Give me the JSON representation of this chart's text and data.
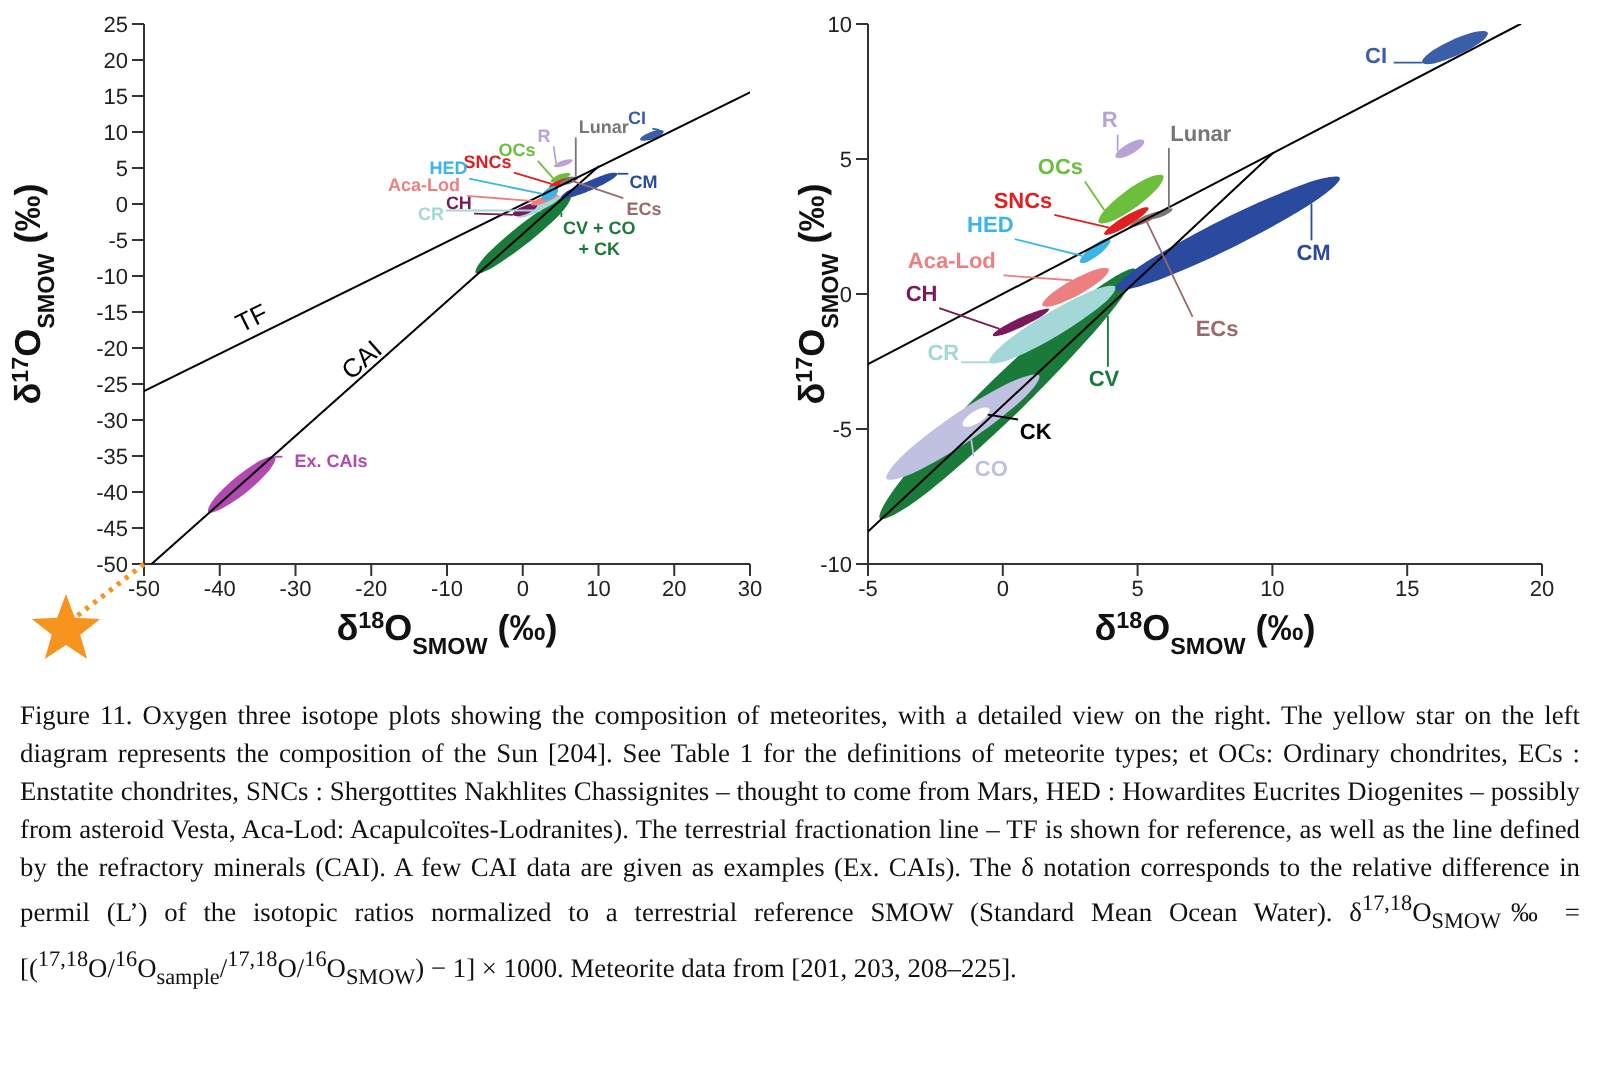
{
  "chart_data": [
    {
      "type": "area",
      "xlabel": "δ$^{18}$O$_{SMOW}$ (‰)",
      "ylabel": "δ$^{17}$O$_{SMOW}$ (‰)",
      "xlim": [
        -50,
        30
      ],
      "ylim": [
        -50,
        25
      ],
      "xticks": [
        -50,
        -40,
        -30,
        -20,
        -10,
        0,
        10,
        20,
        30
      ],
      "yticks": [
        -50,
        -45,
        -40,
        -35,
        -30,
        -25,
        -20,
        -15,
        -10,
        -5,
        0,
        5,
        10,
        15,
        20,
        25
      ],
      "series": [
        {
          "color": "#1a7a3a",
          "x": [
            6.3,
            3.9,
            -0.8,
            -5.0,
            -6.2,
            -3.8,
            0.9,
            5.1
          ],
          "values": [
            1.1,
            0.2,
            -3.3,
            -7.3,
            -9.6,
            -8.7,
            -5.2,
            -1.2
          ]
        },
        {
          "color": "#a4d8d8",
          "x": [
            5.0,
            4.0,
            1.9,
            -0.1,
            -0.7,
            0.3,
            2.4,
            4.4
          ],
          "values": [
            1.1,
            1.1,
            0.2,
            -1.0,
            -1.8,
            -1.8,
            -0.9,
            0.3
          ]
        },
        {
          "color": "#2a4aa0",
          "x": [
            12.5,
            11.2,
            8.5,
            5.9,
            5.0,
            6.3,
            9.0,
            11.6
          ],
          "values": [
            4.2,
            4.2,
            3.1,
            1.8,
            0.8,
            0.9,
            1.9,
            3.3
          ]
        },
        {
          "color": "#7a1a5a",
          "x": [
            1.9,
            1.3,
            0.1,
            -1.0,
            -1.3,
            -0.7,
            0.5,
            1.6
          ],
          "values": [
            -0.1,
            0.1,
            -0.3,
            -0.9,
            -1.5,
            -1.7,
            -1.4,
            -0.7
          ]
        },
        {
          "color": "#ec7f7f",
          "x": [
            4.6,
            4.0,
            2.7,
            1.5,
            1.1,
            1.7,
            3.0,
            4.2
          ],
          "values": [
            1.3,
            1.4,
            1.0,
            0.4,
            -0.1,
            -0.2,
            0.2,
            0.8
          ]
        },
        {
          "color": "#9a6a6a",
          "x": [
            6.8,
            6.3,
            5.3,
            4.4,
            4.1,
            4.6,
            5.6,
            6.5
          ],
          "values": [
            3.6,
            3.8,
            3.6,
            3.1,
            2.7,
            2.5,
            2.7,
            3.2
          ]
        },
        {
          "color": "#6cbf3c",
          "x": [
            6.3,
            5.8,
            4.8,
            4.0,
            3.7,
            4.2,
            5.2,
            6.0
          ],
          "values": [
            4.2,
            4.3,
            4.1,
            3.6,
            3.1,
            3.0,
            3.2,
            3.8
          ]
        },
        {
          "color": "#e02020",
          "x": [
            6.3,
            5.7,
            4.8,
            3.8,
            3.5,
            4.1,
            5.0,
            6.0
          ],
          "values": [
            3.5,
            3.6,
            3.3,
            2.8,
            2.3,
            2.2,
            2.5,
            3.0
          ]
        },
        {
          "color": "#3cb4e8",
          "x": [
            4.6,
            4.0,
            3.2,
            2.6,
            2.6,
            3.2,
            4.0,
            4.6
          ],
          "values": [
            2.3,
            2.5,
            2.1,
            1.4,
            0.7,
            0.5,
            0.9,
            1.6
          ]
        },
        {
          "color": "#777777",
          "x": [
            7.4,
            7.0,
            6.1,
            5.2,
            4.9,
            5.6,
            6.2,
            7.1
          ],
          "values": [
            3.7,
            3.8,
            3.7,
            3.2,
            2.8,
            2.7,
            2.8,
            3.3
          ]
        },
        {
          "color": "#b8a4d4",
          "x": [
            6.6,
            6.1,
            5.2,
            4.4,
            4.1,
            4.6,
            5.5,
            6.3
          ],
          "values": [
            6.1,
            6.2,
            6.0,
            5.6,
            5.2,
            5.1,
            5.3,
            5.7
          ]
        },
        {
          "color": "#3a5fa8",
          "x": [
            18.6,
            18.0,
            16.9,
            15.8,
            15.5,
            16.1,
            17.2,
            18.3
          ],
          "values": [
            10.1,
            10.3,
            10.0,
            9.4,
            8.9,
            8.8,
            9.0,
            9.6
          ]
        },
        {
          "color": "#b04ab0",
          "x": [
            -32.7,
            -34.6,
            -37.9,
            -40.8,
            -41.5,
            -39.7,
            -36.3,
            -33.4
          ],
          "values": [
            -35.1,
            -35.6,
            -38.0,
            -41.0,
            -42.8,
            -42.3,
            -39.9,
            -36.9
          ]
        },
        {
          "type": "line",
          "color": "#000000",
          "x": [
            -50,
            30
          ],
          "values": [
            -26,
            15.5
          ]
        },
        {
          "type": "line",
          "color": "#000000",
          "x": [
            -49,
            10
          ],
          "values": [
            -50,
            5.2
          ]
        }
      ],
      "annotations": [
        {
          "text": "CV + CO\n+ CK",
          "x": 5.1,
          "y": -1.2
        },
        {
          "text": "CR",
          "x": 2.4,
          "y": -0.9
        },
        {
          "text": "CM",
          "x": 12.5,
          "y": 4.2
        },
        {
          "text": "CH",
          "x": -1.3,
          "y": -1.5
        },
        {
          "text": "Aca-Lod",
          "x": 1.5,
          "y": 0.4
        },
        {
          "text": "ECs",
          "x": 6.5,
          "y": 3.2
        },
        {
          "text": "OCs",
          "x": 4.0,
          "y": 3.6
        },
        {
          "text": "SNCs",
          "x": 3.8,
          "y": 2.8
        },
        {
          "text": "HED",
          "x": 2.6,
          "y": 1.4
        },
        {
          "text": "Lunar",
          "x": 7.0,
          "y": 3.8
        },
        {
          "text": "R",
          "x": 4.4,
          "y": 5.6
        },
        {
          "text": "CI",
          "x": 18.0,
          "y": 10.3
        },
        {
          "text": "Ex. CAIs",
          "x": -32.7,
          "y": -35.1
        },
        {
          "text": "TF",
          "x": -35.8,
          "y": -18.6
        },
        {
          "text": "CAI",
          "x": -21.3,
          "y": -24.1
        },
        "Figure 11. Oxygen three isotope plots showing the composition of meteorites, with a detailed view on the right. The yellow star on the left diagram represents the composition of the Sun [204]. See Table 1 for the definitions of meteorite types; et OCs: Ordinary chondrites, ECs : Enstatite chondrites, SNCs : Shergottites Nakhlites Chassignites – thought to come from Mars, HED : Howardites Eucrites Diogenites – possibly from asteroid Vesta, Aca-Lod: Acapulcoïtes-Lodranites). The terrestrial fractionation line – TF is shown for reference, as well as the line defined by the refractory minerals (CAI). A few CAI data are given as examples (Ex. CAIs). The δ notation corresponds to the relative difference in permil (L’) of the isotopic ratios normalized to a terrestrial reference SMOW (Standard Mean Ocean Water). δ$^{17,18}$O$_{SMOW}$‰ = [($^{17,18}$O/$^{16}$O$_{sample}$/$^{17,18}$O/$^{16}$O$_{SMOW}$) − 1] × 1000. Meteorite data from [201, 203, 208–225]."
      ]
    },
    {
      "type": "area",
      "xlabel": "δ$^{18}$O$_{SMOW}$ (‰)",
      "ylabel": "δ$^{17}$O$_{SMOW}$ (‰)",
      "xlim": [
        -5,
        20
      ],
      "ylim": [
        -10,
        10
      ],
      "xticks": [
        -5,
        0,
        5,
        10,
        15,
        20
      ],
      "yticks": [
        -10,
        -5,
        0,
        5,
        10
      ],
      "series": [
        {
          "color": "#1a7a3a",
          "x": [
            4.92,
            3.16,
            -0.34,
            -3.54,
            -4.56,
            -2.8,
            0.7,
            3.9
          ],
          "values": [
            0.92,
            -0.05,
            -3.16,
            -6.59,
            -8.32,
            -7.35,
            -4.24,
            -0.81
          ]
        },
        {
          "color": "#c0c0e0",
          "x": [
            1.35,
            0.3,
            -1.79,
            -3.7,
            -4.31,
            -3.26,
            -1.17,
            0.74
          ],
          "values": [
            -3.02,
            -3.26,
            -4.47,
            -5.96,
            -6.84,
            -6.6,
            -5.39,
            -3.9
          ]
        },
        {
          "color": "#ffffff",
          "x": [
            -0.5,
            -0.73,
            -1.11,
            -1.42,
            -1.48,
            -1.25,
            -0.87,
            -0.56
          ],
          "values": [
            -4.25,
            -4.21,
            -4.37,
            -4.65,
            -4.87,
            -4.91,
            -4.75,
            -4.47
          ]
        },
        {
          "color": "#a4d8d8",
          "x": [
            4.18,
            3.33,
            1.61,
            0.02,
            -0.5,
            0.35,
            2.07,
            3.66
          ],
          "values": [
            0.26,
            0.13,
            -0.75,
            -1.85,
            -2.53,
            -2.4,
            -1.52,
            -0.42
          ]
        },
        {
          "color": "#2a4aa0",
          "x": [
            12.5,
            11.11,
            8.1,
            5.23,
            4.18,
            5.57,
            8.58,
            11.45
          ],
          "values": [
            4.3,
            4.05,
            2.73,
            1.13,
            0.18,
            0.44,
            1.75,
            3.35
          ]
        },
        {
          "color": "#7a1a5a",
          "x": [
            1.72,
            1.36,
            0.6,
            -0.12,
            -0.37,
            -0.01,
            0.75,
            1.47
          ],
          "values": [
            -0.56,
            -0.6,
            -0.9,
            -1.29,
            -1.54,
            -1.51,
            -1.2,
            -0.81
          ]
        },
        {
          "color": "#ec7f7f",
          "x": [
            3.93,
            3.47,
            2.56,
            1.73,
            1.47,
            1.93,
            2.84,
            3.67
          ],
          "values": [
            0.92,
            0.91,
            0.51,
            -0.05,
            -0.43,
            -0.42,
            -0.02,
            0.54
          ]
        },
        {
          "color": "#3cb4e8",
          "x": [
            3.98,
            3.73,
            3.3,
            2.95,
            2.87,
            3.12,
            3.55,
            3.9
          ],
          "values": [
            2.03,
            2.02,
            1.76,
            1.41,
            1.17,
            1.18,
            1.44,
            1.79
          ]
        },
        {
          "color": "#9a6a6a",
          "x": [
            5.9,
            5.69,
            5.25,
            4.84,
            4.7,
            4.91,
            5.35,
            5.76
          ],
          "values": [
            3.05,
            3.05,
            2.89,
            2.66,
            2.5,
            2.5,
            2.66,
            2.89
          ]
        },
        {
          "color": "#e02020",
          "x": [
            5.41,
            5.1,
            4.49,
            3.94,
            3.76,
            4.07,
            4.68,
            5.23
          ],
          "values": [
            3.19,
            3.16,
            2.86,
            2.46,
            2.21,
            2.24,
            2.55,
            2.94
          ]
        },
        {
          "color": "#6cbf3c",
          "x": [
            5.95,
            5.46,
            4.55,
            3.77,
            3.56,
            4.06,
            4.96,
            5.75
          ],
          "values": [
            4.38,
            4.33,
            3.8,
            3.1,
            2.65,
            2.7,
            3.23,
            3.93
          ]
        },
        {
          "color": "#777777",
          "x": [
            6.3,
            6.16,
            5.86,
            5.59,
            5.5,
            5.65,
            5.94,
            6.21
          ],
          "values": [
            3.15,
            3.16,
            3.07,
            2.92,
            2.8,
            2.79,
            2.88,
            3.03
          ]
        },
        {
          "color": "#b8a4d4",
          "x": [
            5.24,
            5.01,
            4.61,
            4.26,
            4.18,
            4.41,
            4.81,
            5.16
          ],
          "values": [
            5.68,
            5.71,
            5.55,
            5.28,
            5.07,
            5.04,
            5.2,
            5.47
          ]
        },
        {
          "color": "#3a5fa8",
          "x": [
            17.99,
            17.55,
            16.65,
            15.82,
            15.55,
            16.0,
            16.89,
            17.72
          ],
          "values": [
            9.68,
            9.71,
            9.4,
            8.93,
            8.57,
            8.54,
            8.85,
            9.32
          ]
        },
        {
          "type": "line",
          "color": "#000000",
          "x": [
            -5,
            19.2
          ],
          "values": [
            -2.6,
            10
          ]
        },
        {
          "type": "line",
          "color": "#000000",
          "x": [
            -5,
            10
          ],
          "values": [
            -8.8,
            5.2
          ]
        }
      ],
      "annotations": [
        {
          "text": "CV",
          "x": 3.9,
          "y": -0.81
        },
        {
          "text": "CO",
          "x": -1.17,
          "y": -5.39
        },
        {
          "text": "CK",
          "x": -0.56,
          "y": -4.47
        },
        {
          "text": "CR",
          "x": -0.5,
          "y": -2.53
        },
        {
          "text": "CM",
          "x": 11.45,
          "y": 3.35
        },
        {
          "text": "CH",
          "x": -0.12,
          "y": -1.29
        },
        {
          "text": "Aca-Lod",
          "x": 2.56,
          "y": 0.51
        },
        {
          "text": "HED",
          "x": 2.95,
          "y": 1.41
        },
        {
          "text": "ECs",
          "x": 5.35,
          "y": 2.66
        },
        {
          "text": "SNCs",
          "x": 3.94,
          "y": 2.46
        },
        {
          "text": "OCs",
          "x": 3.77,
          "y": 3.1
        },
        {
          "text": "Lunar",
          "x": 6.16,
          "y": 3.16
        },
        {
          "text": "R",
          "x": 4.26,
          "y": 5.28
        },
        {
          "text": "CI",
          "x": 15.55,
          "y": 8.57
        }
      ]
    }
  ]
}
